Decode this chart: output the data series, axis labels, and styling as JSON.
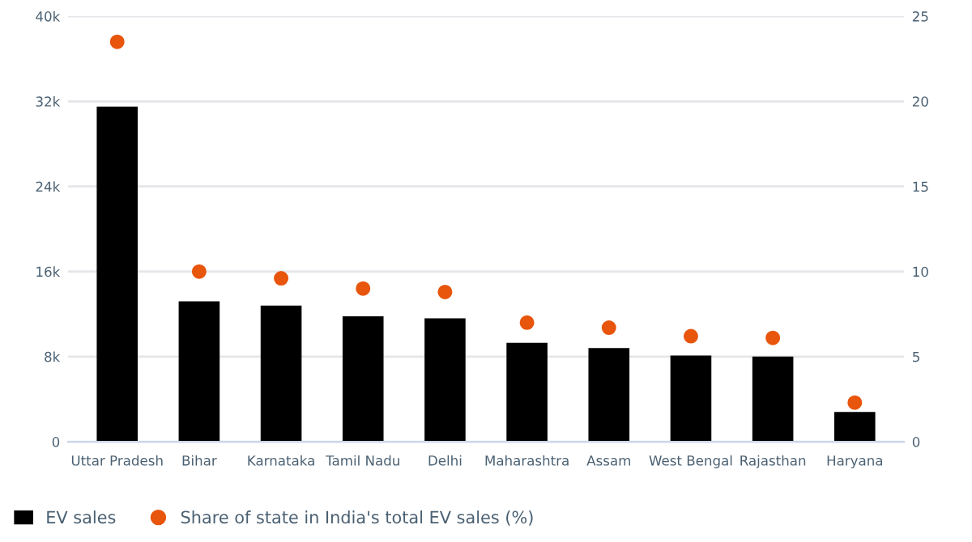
{
  "chart_data": {
    "type": "bar",
    "categories": [
      "Uttar Pradesh",
      "Bihar",
      "Karnataka",
      "Tamil Nadu",
      "Delhi",
      "Maharashtra",
      "Assam",
      "West Bengal",
      "Rajasthan",
      "Haryana"
    ],
    "series": [
      {
        "name": "EV sales",
        "color": "#000000",
        "values": [
          31500,
          13200,
          12800,
          11800,
          11600,
          9300,
          8800,
          8100,
          8000,
          2800
        ]
      },
      {
        "name": "Share of state in India's total EV sales (%)",
        "type": "scatter",
        "axis": "y2",
        "color": "#e8550c",
        "values": [
          23.5,
          10.0,
          9.6,
          9.0,
          8.8,
          7.0,
          6.7,
          6.2,
          6.1,
          2.3
        ]
      }
    ],
    "ylim": [
      0,
      40000
    ],
    "yticks": [
      0,
      {
        "value": 8000,
        "label": "8k"
      },
      {
        "value": 16000,
        "label": "16k"
      },
      {
        "value": 24000,
        "label": "24k"
      },
      {
        "value": 32000,
        "label": "32k"
      },
      {
        "value": 40000,
        "label": "40k"
      }
    ],
    "y2lim": [
      0,
      25
    ],
    "y2ticks": [
      0,
      5,
      10,
      15,
      20,
      25
    ],
    "grid": "y",
    "legend": "bottom left",
    "marker": "circle"
  }
}
